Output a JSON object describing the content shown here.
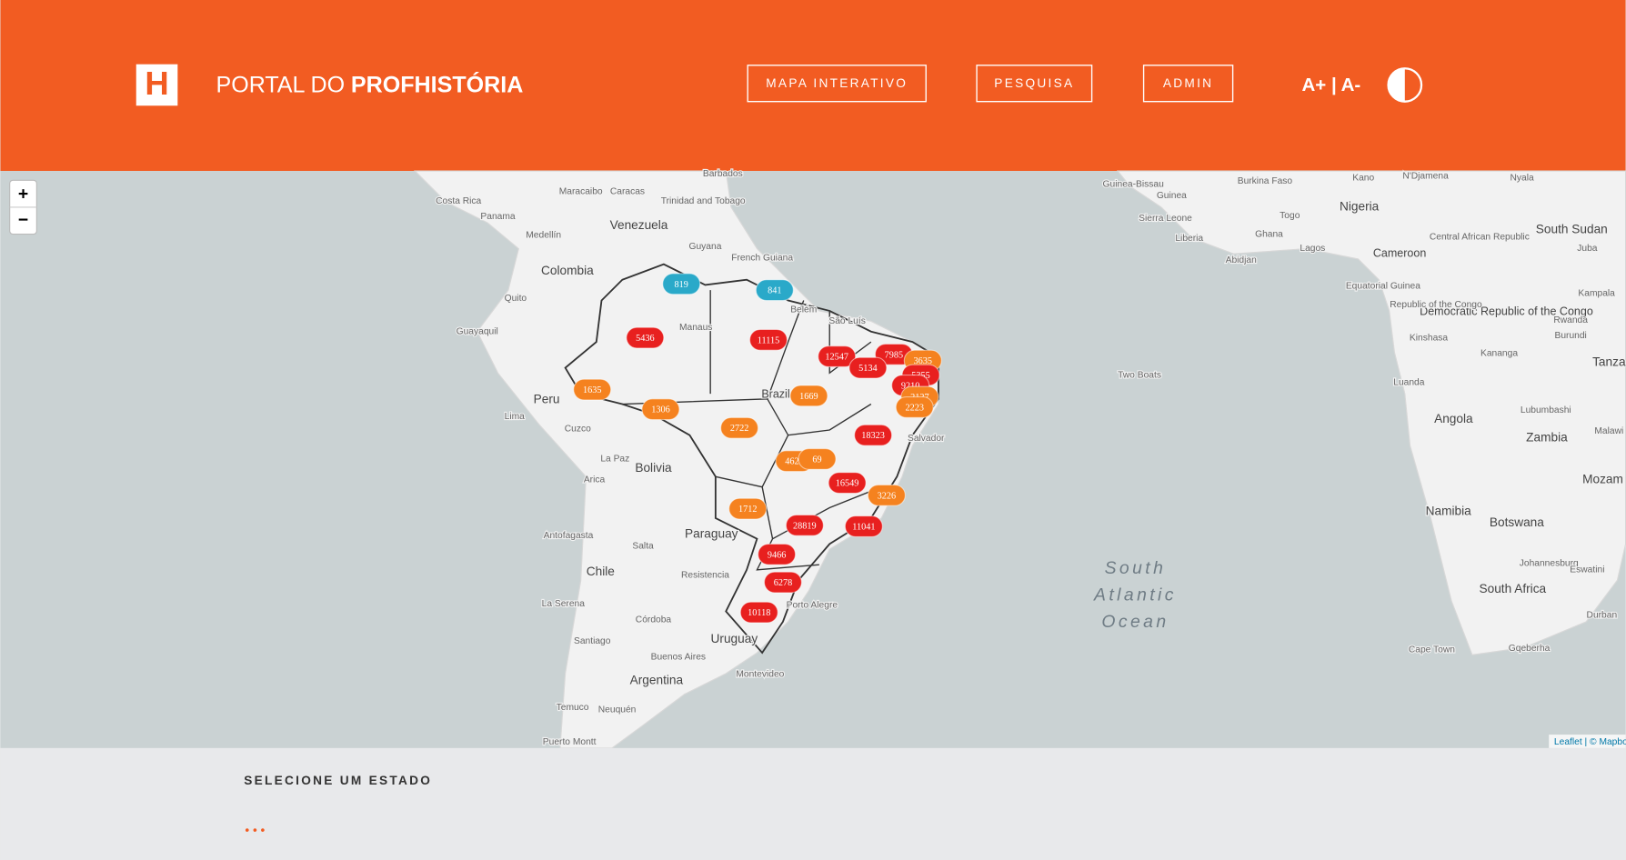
{
  "header": {
    "logo": "H",
    "title_light": "PORTAL DO",
    "title_bold": "PROFHISTÓRIA",
    "nav": [
      "MAPA INTERATIVO",
      "PESQUISA",
      "ADMIN"
    ],
    "font_controls": "A+ | A-"
  },
  "map": {
    "zoom_in": "+",
    "zoom_out": "−",
    "labels": [
      "Venezuela",
      "Colombia",
      "Peru",
      "Bolivia",
      "Brazil",
      "Paraguay",
      "Chile",
      "Argentina",
      "Uruguay",
      "Guyana",
      "French Guiana",
      "Costa Rica",
      "Panama",
      "Caracas",
      "Maracaibo",
      "Barbados",
      "Trinidad and Tobago",
      "Medellín",
      "Quito",
      "Guayaquil",
      "Lima",
      "Cuzco",
      "La Paz",
      "Arica",
      "Antofagasta",
      "Salta",
      "Resistencia",
      "La Serena",
      "Córdoba",
      "Santiago",
      "Buenos Aires",
      "Montevideo",
      "Temuco",
      "Neuquén",
      "Puerto Montt",
      "Manaus",
      "Belém",
      "São Luís",
      "Salvador",
      "Porto Alegre",
      "South",
      "Atlantic",
      "Ocean",
      "Two Boats",
      "Guinea-Bissau",
      "Guinea",
      "Sierra Leone",
      "Liberia",
      "Burkina Faso",
      "Ghana",
      "Togo",
      "Nigeria",
      "Lagos",
      "Abidjan",
      "Cameroon",
      "Equatorial Guinea",
      "Kano",
      "N'Djamena",
      "Nyala",
      "South Sudan",
      "Juba",
      "Central African Republic",
      "Democratic Republic of the Congo",
      "Republic of the Congo",
      "Kampala",
      "Rwanda",
      "Burundi",
      "Kinshasa",
      "Kananga",
      "Tanza",
      "Luanda",
      "Angola",
      "Lubumbashi",
      "Zambia",
      "Malawi",
      "Mozam",
      "Namibia",
      "Botswana",
      "Johannesburg",
      "Eswatini",
      "South Africa",
      "Durban",
      "Cape Town",
      "Gqeberha"
    ],
    "markers": [
      {
        "value": 819,
        "color": "#2aa9c9"
      },
      {
        "value": 841,
        "color": "#2aa9c9"
      },
      {
        "value": 5436,
        "color": "#e8201f"
      },
      {
        "value": 11115,
        "color": "#e8201f"
      },
      {
        "value": 12547,
        "color": "#e8201f"
      },
      {
        "value": 7985,
        "color": "#e8201f"
      },
      {
        "value": 3635,
        "color": "#f5821f"
      },
      {
        "value": 5134,
        "color": "#e8201f"
      },
      {
        "value": 5355,
        "color": "#e8201f"
      },
      {
        "value": 9210,
        "color": "#e8201f"
      },
      {
        "value": 2127,
        "color": "#f5821f"
      },
      {
        "value": 2223,
        "color": "#f5821f"
      },
      {
        "value": 1635,
        "color": "#f5821f"
      },
      {
        "value": 1306,
        "color": "#f5821f"
      },
      {
        "value": 1669,
        "color": "#f5821f"
      },
      {
        "value": 2722,
        "color": "#f5821f"
      },
      {
        "value": 18323,
        "color": "#e8201f"
      },
      {
        "value": 4621,
        "color": "#f5821f"
      },
      {
        "value": 69,
        "color": "#f5821f"
      },
      {
        "value": 16549,
        "color": "#e8201f"
      },
      {
        "value": 3226,
        "color": "#f5821f"
      },
      {
        "value": 1712,
        "color": "#f5821f"
      },
      {
        "value": 28819,
        "color": "#e8201f"
      },
      {
        "value": 11041,
        "color": "#e8201f"
      },
      {
        "value": 9466,
        "color": "#e8201f"
      },
      {
        "value": 6278,
        "color": "#e8201f"
      },
      {
        "value": 10118,
        "color": "#e8201f"
      }
    ],
    "attribution": "Leaflet | © Mapbo"
  },
  "footer": {
    "heading": "SELECIONE UM ESTADO",
    "loading": "• • •"
  }
}
